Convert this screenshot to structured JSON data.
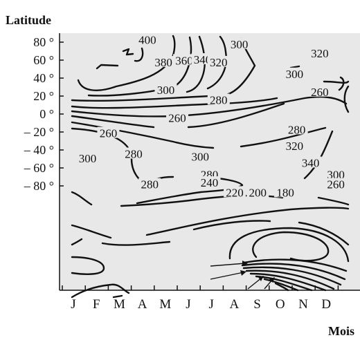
{
  "chart_data": {
    "type": "contour",
    "ylabel": "Latitude",
    "xlabel": "Mois",
    "y_ticks": [
      {
        "value": 80,
        "label": "80 °"
      },
      {
        "value": 60,
        "label": "60 °"
      },
      {
        "value": 40,
        "label": "40 °"
      },
      {
        "value": 20,
        "label": "20 °"
      },
      {
        "value": 0,
        "label": "0 °"
      },
      {
        "value": -20,
        "label": "– 20 °"
      },
      {
        "value": -40,
        "label": "– 40 °"
      },
      {
        "value": -60,
        "label": "– 60 °"
      },
      {
        "value": -80,
        "label": "– 80 °"
      }
    ],
    "months": [
      "J",
      "F",
      "M",
      "A",
      "M",
      "J",
      "J",
      "A",
      "S",
      "O",
      "N",
      "D"
    ],
    "ylim": [
      -90,
      90
    ],
    "xlim": [
      0,
      12
    ],
    "colors": {
      "plot_background": "#e8e8e8",
      "line": "#111111"
    },
    "contour_labels": [
      {
        "text": "400",
        "month": 3.4,
        "lat": 82
      },
      {
        "text": "300",
        "month": 7.4,
        "lat": 77
      },
      {
        "text": "380",
        "month": 4.1,
        "lat": 57
      },
      {
        "text": "360",
        "month": 5.0,
        "lat": 59
      },
      {
        "text": "340",
        "month": 5.8,
        "lat": 60
      },
      {
        "text": "320",
        "month": 6.5,
        "lat": 57
      },
      {
        "text": "320",
        "month": 10.9,
        "lat": 67
      },
      {
        "text": "300",
        "month": 9.8,
        "lat": 44
      },
      {
        "text": "300",
        "month": 4.2,
        "lat": 26
      },
      {
        "text": "280",
        "month": 6.5,
        "lat": 15
      },
      {
        "text": "260",
        "month": 10.9,
        "lat": 24
      },
      {
        "text": "260",
        "month": 4.7,
        "lat": -5
      },
      {
        "text": "260",
        "month": 1.7,
        "lat": -22
      },
      {
        "text": "280",
        "month": 9.9,
        "lat": -18
      },
      {
        "text": "280",
        "month": 2.8,
        "lat": -45
      },
      {
        "text": "300",
        "month": 0.8,
        "lat": -50
      },
      {
        "text": "300",
        "month": 5.7,
        "lat": -48
      },
      {
        "text": "320",
        "month": 9.8,
        "lat": -36
      },
      {
        "text": "340",
        "month": 10.5,
        "lat": -55
      },
      {
        "text": "300",
        "month": 11.6,
        "lat": -68
      },
      {
        "text": "260",
        "month": 11.6,
        "lat": -79
      },
      {
        "text": "280",
        "month": 6.1,
        "lat": -68
      },
      {
        "text": "240",
        "month": 6.1,
        "lat": -77
      },
      {
        "text": "280",
        "month": 3.5,
        "lat": -79
      },
      {
        "text": "220",
        "month": 7.2,
        "lat": -88
      },
      {
        "text": "200",
        "month": 8.2,
        "lat": -88
      },
      {
        "text": "180",
        "month": 9.4,
        "lat": -88
      }
    ]
  }
}
